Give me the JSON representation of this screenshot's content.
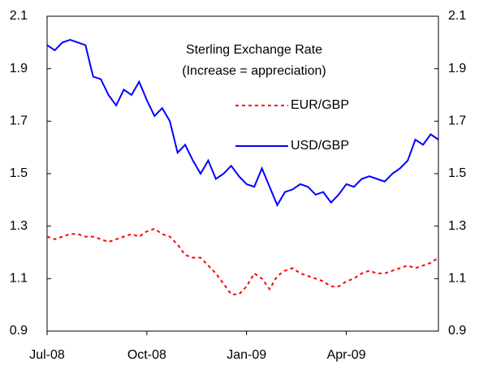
{
  "chart_data": {
    "type": "line",
    "title": "Sterling Exchange Rate",
    "subtitle": "(Increase = appreciation)",
    "categories": [
      "Jul-08",
      null,
      null,
      null,
      null,
      null,
      null,
      null,
      null,
      null,
      null,
      null,
      null,
      "Oct-08",
      null,
      null,
      null,
      null,
      null,
      null,
      null,
      null,
      null,
      null,
      null,
      null,
      "Jan-09",
      null,
      null,
      null,
      null,
      null,
      null,
      null,
      null,
      null,
      null,
      null,
      null,
      "Apr-09",
      null,
      null,
      null,
      null,
      null,
      null,
      null,
      null,
      null,
      null,
      null,
      null
    ],
    "series": [
      {
        "name": "EUR/GBP",
        "color": "#ff0000",
        "dash": true,
        "values": [
          1.26,
          1.25,
          1.26,
          1.27,
          1.27,
          1.26,
          1.26,
          1.25,
          1.24,
          1.25,
          1.26,
          1.27,
          1.26,
          1.28,
          1.29,
          1.27,
          1.26,
          1.23,
          1.19,
          1.18,
          1.18,
          1.15,
          1.12,
          1.08,
          1.04,
          1.04,
          1.07,
          1.12,
          1.1,
          1.06,
          1.11,
          1.13,
          1.14,
          1.12,
          1.11,
          1.1,
          1.09,
          1.07,
          1.07,
          1.09,
          1.1,
          1.12,
          1.13,
          1.12,
          1.12,
          1.13,
          1.14,
          1.15,
          1.14,
          1.15,
          1.16,
          1.18
        ]
      },
      {
        "name": "USD/GBP",
        "color": "#0000ff",
        "dash": false,
        "values": [
          1.99,
          1.97,
          2.0,
          2.01,
          2.0,
          1.99,
          1.87,
          1.86,
          1.8,
          1.76,
          1.82,
          1.8,
          1.85,
          1.78,
          1.72,
          1.75,
          1.7,
          1.58,
          1.61,
          1.55,
          1.5,
          1.55,
          1.48,
          1.5,
          1.53,
          1.49,
          1.46,
          1.45,
          1.52,
          1.45,
          1.38,
          1.43,
          1.44,
          1.46,
          1.45,
          1.42,
          1.43,
          1.39,
          1.42,
          1.46,
          1.45,
          1.48,
          1.49,
          1.48,
          1.47,
          1.5,
          1.52,
          1.55,
          1.63,
          1.61,
          1.65,
          1.63
        ]
      }
    ],
    "ylim": [
      0.9,
      2.1
    ],
    "yticks": [
      0.9,
      1.1,
      1.3,
      1.5,
      1.7,
      1.9,
      2.1
    ],
    "y2lim": [
      0.9,
      2.1
    ],
    "y2ticks": [
      0.9,
      1.1,
      1.3,
      1.5,
      1.7,
      1.9,
      2.1
    ],
    "grid": false
  }
}
